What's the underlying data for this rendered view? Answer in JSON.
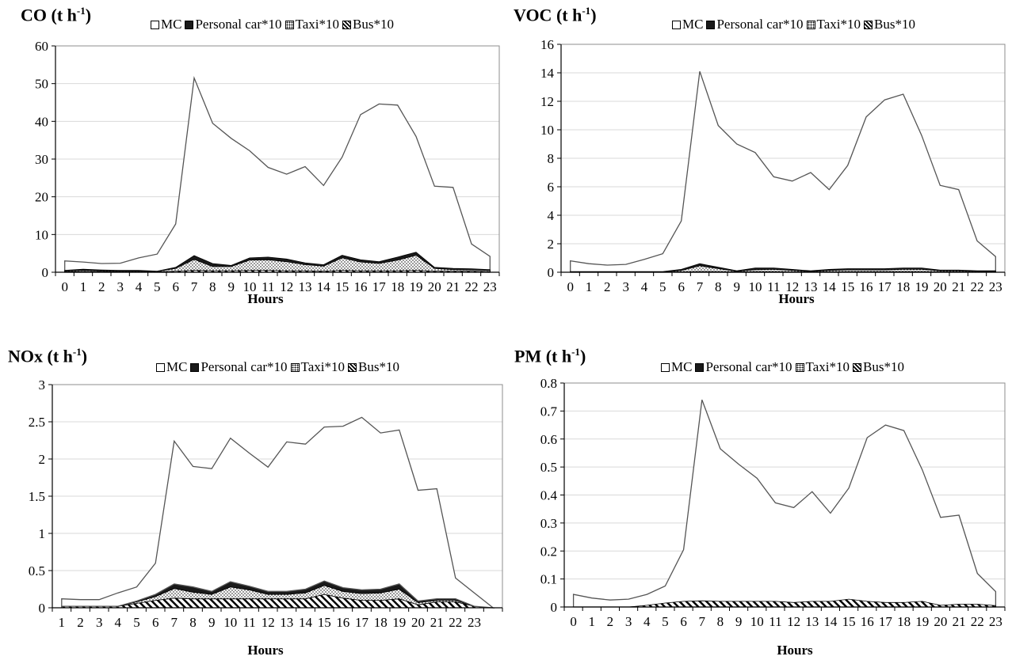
{
  "colors": {
    "mc_fill": "#ffffff",
    "car_fill": "#1a1a1a",
    "line": "#555555",
    "grid": "#d9d9d9"
  },
  "legend": {
    "mc": "MC",
    "car": "Personal car*10",
    "taxi": "Taxi*10",
    "bus": "Bus*10"
  },
  "chart_data": [
    {
      "type": "area",
      "title": "CO (t h",
      "title_sup": "-1",
      "title_tail": ")",
      "xlabel": "Hours",
      "x": [
        "0",
        "1",
        "2",
        "3",
        "4",
        "5",
        "6",
        "7",
        "8",
        "9",
        "10",
        "11",
        "12",
        "13",
        "14",
        "15",
        "16",
        "17",
        "18",
        "19",
        "20",
        "21",
        "22",
        "23"
      ],
      "ylim": [
        0,
        60
      ],
      "yticks": [
        0,
        10,
        20,
        30,
        40,
        50,
        60
      ],
      "ytick_labels": [
        "0",
        "10",
        "20",
        "30",
        "40",
        "50",
        "60"
      ],
      "stacked": false,
      "series": [
        {
          "name": "MC",
          "values": [
            3,
            2.7,
            2.3,
            2.4,
            3.8,
            4.8,
            12.8,
            51.5,
            39.5,
            35.5,
            32.2,
            27.8,
            26,
            28,
            23,
            30.5,
            41.8,
            44.6,
            44.3,
            36,
            22.8,
            22.5,
            7.5,
            4.2
          ]
        },
        {
          "name": "Personal car*10",
          "values": [
            0.5,
            0.8,
            0.6,
            0.5,
            0.5,
            0.3,
            1.3,
            4.4,
            2.3,
            1.8,
            3.8,
            4.0,
            3.5,
            2.5,
            2.0,
            4.5,
            3.3,
            2.8,
            4,
            5.3,
            1.3,
            1.0,
            0.9,
            0.7
          ]
        },
        {
          "name": "Taxi*10",
          "values": [
            0.3,
            0.5,
            0.4,
            0.3,
            0.3,
            0.2,
            1.0,
            3.4,
            1.5,
            1.5,
            3.2,
            3.3,
            2.8,
            2.0,
            1.6,
            3.8,
            2.7,
            2.3,
            3.2,
            4.5,
            1.0,
            0.7,
            0.6,
            0.5
          ]
        },
        {
          "name": "Bus*10",
          "values": [
            0.1,
            0.2,
            0.2,
            0.1,
            0.1,
            0.1,
            0.3,
            0.5,
            0.4,
            0.4,
            0.5,
            0.5,
            0.4,
            0.4,
            0.3,
            0.5,
            0.4,
            0.4,
            0.4,
            0.5,
            0.3,
            0.3,
            0.3,
            0.2
          ]
        }
      ]
    },
    {
      "type": "area",
      "title": "VOC (t h",
      "title_sup": "-1",
      "title_tail": ")",
      "xlabel": "Hours",
      "x": [
        "0",
        "1",
        "2",
        "3",
        "4",
        "5",
        "6",
        "7",
        "8",
        "9",
        "10",
        "11",
        "12",
        "13",
        "14",
        "15",
        "16",
        "17",
        "18",
        "19",
        "20",
        "21",
        "22",
        "23"
      ],
      "ylim": [
        0,
        16
      ],
      "yticks": [
        0,
        2,
        4,
        6,
        8,
        10,
        12,
        14,
        16
      ],
      "ytick_labels": [
        "0",
        "2",
        "4",
        "6",
        "8",
        "10",
        "12",
        "14",
        "16"
      ],
      "stacked": false,
      "series": [
        {
          "name": "MC",
          "values": [
            0.8,
            0.6,
            0.5,
            0.55,
            0.9,
            1.3,
            3.6,
            14.1,
            10.3,
            9,
            8.4,
            6.7,
            6.4,
            7,
            5.8,
            7.5,
            10.9,
            12.1,
            12.5,
            9.6,
            6.1,
            5.8,
            2.2,
            1.1
          ]
        },
        {
          "name": "Personal car*10",
          "values": [
            0.05,
            0.05,
            0.05,
            0.05,
            0.05,
            0.05,
            0.2,
            0.6,
            0.35,
            0.1,
            0.3,
            0.3,
            0.2,
            0.1,
            0.2,
            0.25,
            0.25,
            0.25,
            0.3,
            0.3,
            0.15,
            0.15,
            0.1,
            0.1
          ]
        },
        {
          "name": "Taxi*10",
          "values": [
            0.02,
            0.03,
            0.03,
            0.02,
            0.02,
            0.02,
            0.12,
            0.45,
            0.25,
            0.06,
            0.18,
            0.2,
            0.13,
            0.06,
            0.12,
            0.16,
            0.16,
            0.16,
            0.2,
            0.2,
            0.1,
            0.1,
            0.06,
            0.06
          ]
        },
        {
          "name": "Bus*10",
          "values": [
            0.01,
            0.01,
            0.01,
            0.01,
            0.01,
            0.01,
            0.03,
            0.05,
            0.04,
            0.03,
            0.04,
            0.04,
            0.03,
            0.03,
            0.03,
            0.04,
            0.04,
            0.04,
            0.04,
            0.04,
            0.03,
            0.03,
            0.02,
            0.02
          ]
        }
      ]
    },
    {
      "type": "area",
      "title": "NOx (t h",
      "title_sup": "-1",
      "title_tail": ")",
      "xlabel": "Hours",
      "x": [
        "1",
        "2",
        "3",
        "4",
        "5",
        "6",
        "7",
        "8",
        "9",
        "10",
        "11",
        "12",
        "13",
        "14",
        "15",
        "16",
        "17",
        "18",
        "19",
        "20",
        "21",
        "22",
        "23",
        ""
      ],
      "ylim": [
        0,
        3
      ],
      "yticks": [
        0,
        0.5,
        1,
        1.5,
        2,
        2.5,
        3
      ],
      "ytick_labels": [
        "0",
        "0.5",
        "1",
        "1.5",
        "2",
        "2.5",
        "3"
      ],
      "stacked": true,
      "series": [
        {
          "name": "Bus*10",
          "values": [
            0.02,
            0.02,
            0.02,
            0.02,
            0.06,
            0.1,
            0.13,
            0.12,
            0.12,
            0.12,
            0.12,
            0.12,
            0.12,
            0.12,
            0.18,
            0.13,
            0.1,
            0.1,
            0.12,
            0.04,
            0.08,
            0.08,
            0.02,
            0
          ]
        },
        {
          "name": "Taxi*10",
          "values": [
            0,
            0,
            0,
            0,
            0.02,
            0.05,
            0.13,
            0.09,
            0.06,
            0.16,
            0.12,
            0.06,
            0.06,
            0.08,
            0.12,
            0.09,
            0.09,
            0.1,
            0.13,
            0.03,
            0.02,
            0.02,
            0,
            0
          ]
        },
        {
          "name": "Personal car*10",
          "values": [
            0,
            0,
            0,
            0,
            0.01,
            0.03,
            0.06,
            0.07,
            0.04,
            0.07,
            0.05,
            0.04,
            0.04,
            0.05,
            0.06,
            0.05,
            0.05,
            0.05,
            0.07,
            0.02,
            0.02,
            0.02,
            0,
            0
          ]
        },
        {
          "name": "MC",
          "values": [
            0.1,
            0.09,
            0.09,
            0.18,
            0.19,
            0.42,
            1.92,
            1.62,
            1.65,
            1.93,
            1.79,
            1.67,
            2.01,
            1.95,
            2.07,
            2.17,
            2.32,
            2.1,
            2.07,
            1.49,
            1.48,
            0.28,
            0.18,
            0
          ]
        }
      ]
    },
    {
      "type": "area",
      "title": "PM (t h",
      "title_sup": "-1",
      "title_tail": ")",
      "xlabel": "Hours",
      "x": [
        "0",
        "1",
        "2",
        "3",
        "4",
        "5",
        "6",
        "7",
        "8",
        "9",
        "10",
        "11",
        "12",
        "13",
        "14",
        "15",
        "16",
        "17",
        "18",
        "19",
        "20",
        "21",
        "22",
        "23"
      ],
      "ylim": [
        0,
        0.8
      ],
      "yticks": [
        0,
        0.1,
        0.2,
        0.3,
        0.4,
        0.5,
        0.6,
        0.7,
        0.8
      ],
      "ytick_labels": [
        "0",
        "0.1",
        "0.2",
        "0.3",
        "0.4",
        "0.5",
        "0.6",
        "0.7",
        "0.8"
      ],
      "stacked": false,
      "series": [
        {
          "name": "MC",
          "values": [
            0.045,
            0.032,
            0.025,
            0.028,
            0.045,
            0.075,
            0.205,
            0.74,
            0.565,
            0.51,
            0.46,
            0.372,
            0.355,
            0.412,
            0.335,
            0.425,
            0.605,
            0.65,
            0.63,
            0.49,
            0.32,
            0.328,
            0.12,
            0.055
          ]
        },
        {
          "name": "Personal car*10",
          "values": [
            0,
            0,
            0,
            0,
            0.002,
            0.005,
            0.008,
            0.008,
            0.008,
            0.008,
            0.008,
            0.008,
            0.006,
            0.008,
            0.008,
            0.01,
            0.008,
            0.008,
            0.008,
            0.008,
            0.003,
            0.004,
            0.004,
            0.002
          ]
        },
        {
          "name": "Taxi*10",
          "values": [
            0,
            0,
            0,
            0,
            0.004,
            0.01,
            0.016,
            0.018,
            0.016,
            0.016,
            0.016,
            0.016,
            0.013,
            0.016,
            0.016,
            0.022,
            0.016,
            0.014,
            0.014,
            0.016,
            0.005,
            0.008,
            0.008,
            0.004
          ]
        },
        {
          "name": "Bus*10",
          "values": [
            0,
            0,
            0,
            0,
            0.006,
            0.014,
            0.02,
            0.022,
            0.02,
            0.02,
            0.02,
            0.02,
            0.016,
            0.02,
            0.02,
            0.028,
            0.02,
            0.016,
            0.016,
            0.02,
            0.006,
            0.01,
            0.01,
            0.005
          ]
        }
      ]
    }
  ]
}
